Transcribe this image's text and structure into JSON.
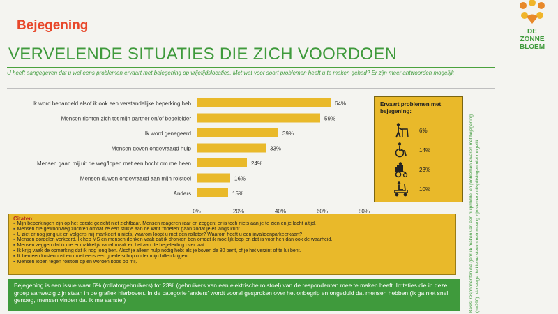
{
  "header": {
    "section_title": "Bejegening",
    "main_title": "VERVELENDE SITUATIES DIE ZICH VOORDOEN",
    "question": "U heeft aangegeven dat u wel eens problemen ervaart met bejegening op vrijetijdslocaties. Met wat voor soort problemen heeft u te maken gehad? Er zijn meer antwoorden mogelijk"
  },
  "logo": {
    "line1": "DE",
    "line2": "ZONNE",
    "line3": "BLOEM",
    "colors": {
      "heart_orange": "#e8892a",
      "heart_yellow": "#f0b52a",
      "text_green": "#3f9a3c"
    }
  },
  "chart_data": {
    "type": "bar",
    "orientation": "horizontal",
    "categories": [
      "Ik word behandeld alsof ik ook een verstandelijke beperking heb",
      "Mensen richten zich tot mijn partner en/of begeleider",
      "Ik word genegeerd",
      "Mensen geven ongevraagd hulp",
      "Mensen gaan mij uit de weg/lopen met een bocht om me heen",
      "Mensen duwen ongevraagd aan mijn rolstoel",
      "Anders"
    ],
    "values": [
      64,
      59,
      39,
      33,
      24,
      16,
      15
    ],
    "value_labels": [
      "64%",
      "59%",
      "39%",
      "33%",
      "24%",
      "16%",
      "15%"
    ],
    "xlim": [
      0,
      80
    ],
    "x_ticks": [
      "0%",
      "20%",
      "40%",
      "60%",
      "80%"
    ],
    "bar_color": "#e9b92a",
    "title": "",
    "xlabel": "",
    "ylabel": ""
  },
  "sidebox": {
    "title": "Ervaart problemen met bejegening:",
    "items": [
      {
        "icon": "walker-icon",
        "value": "6%"
      },
      {
        "icon": "wheelchair-icon",
        "value": "14%"
      },
      {
        "icon": "electric-wheelchair-icon",
        "value": "23%"
      },
      {
        "icon": "mobility-scooter-icon",
        "value": "10%"
      }
    ]
  },
  "quotes": {
    "heading": "Citaten:",
    "items": [
      "Mijn beperkingen zijn op het eerste gezicht niet zichtbaar. Mensen reageren raar en zeggen: er is toch niets aan je te zien en je lacht altijd.",
      "Mensen die gewoonweg zuchten omdat ze een stukje aan de kant 'moeten' gaan zodat je er langs kunt.",
      "U ziet er nog jong uit en volgens mij mankeert u niets, waarom loopt u met een rollator? Waarom heeft u een invalidenparkeerkaart?",
      "Mensen oordelen verkeerd. Ik heb MS en mensen denken vaak dat ik dronken ben omdat ik moeilijk loop en dat is voor hen dan ook de waarheid.",
      "Mensen zeggen dat ik me er makkelijk vanaf maak en het aan de begeleiding over laat.",
      "Ik krijg vaak de opmerking dat ik nog jong ben. Alsof je alleen hulp nodig hebt als je boven de 80 bent, of je het verzint of te lui bent.",
      "Ik ben een kostenpost en moet eens een goede schop onder mijn billen krijgen.",
      "Mensen lopen tegen rolstoel op en worden boos op mij."
    ]
  },
  "conclusion": {
    "text": "Bejegening is een issue waar 6% (rollatorgebruikers) tot 23% (gebruikers van een elektrische rolstoel) van de respondenten mee te maken heeft. Irritaties die in deze groep aanwezig zijn staan in de grafiek hierboven. In de categorie 'anders' wordt vooral gesproken over het onbegrip en ongeduld dat mensen hebben (ik ga niet snel genoeg, mensen vinden dat ik me aanstel)"
  },
  "footnote": {
    "text": "Basis: respondenten die gebruik maken van een hulpmiddel en problemen ervaren met bejegening (n=290). Vanwege de kleine steekproefomvang zijn verdere uitsplitsingen niet mogelijk."
  }
}
